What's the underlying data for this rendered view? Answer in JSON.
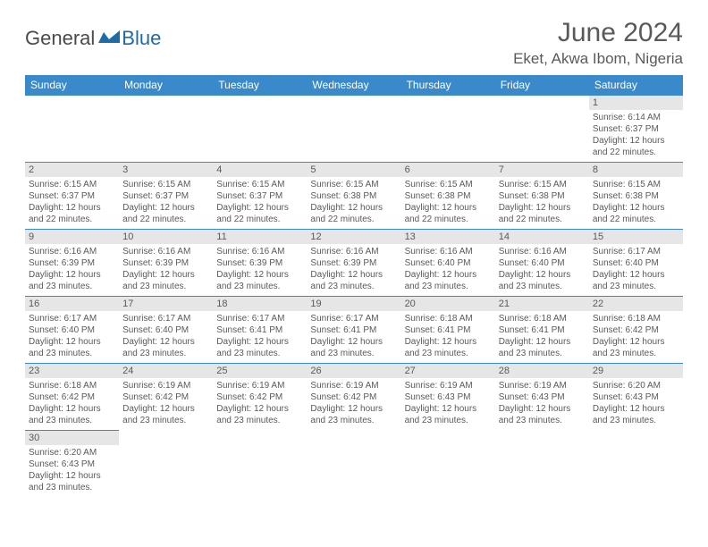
{
  "colors": {
    "header_bg": "#3a8acb",
    "header_text": "#ffffff",
    "daynum_bg": "#e6e6e6",
    "border": "#3a8acb",
    "body_text": "#5a5a5a",
    "logo_blue": "#1e6ba8"
  },
  "logo": {
    "text1": "General",
    "text2": "Blue"
  },
  "title": "June 2024",
  "location": "Eket, Akwa Ibom, Nigeria",
  "weekdays": [
    "Sunday",
    "Monday",
    "Tuesday",
    "Wednesday",
    "Thursday",
    "Friday",
    "Saturday"
  ],
  "weeks": [
    [
      null,
      null,
      null,
      null,
      null,
      null,
      {
        "n": "1",
        "sr": "Sunrise: 6:14 AM",
        "ss": "Sunset: 6:37 PM",
        "d1": "Daylight: 12 hours",
        "d2": "and 22 minutes."
      }
    ],
    [
      {
        "n": "2",
        "sr": "Sunrise: 6:15 AM",
        "ss": "Sunset: 6:37 PM",
        "d1": "Daylight: 12 hours",
        "d2": "and 22 minutes."
      },
      {
        "n": "3",
        "sr": "Sunrise: 6:15 AM",
        "ss": "Sunset: 6:37 PM",
        "d1": "Daylight: 12 hours",
        "d2": "and 22 minutes."
      },
      {
        "n": "4",
        "sr": "Sunrise: 6:15 AM",
        "ss": "Sunset: 6:37 PM",
        "d1": "Daylight: 12 hours",
        "d2": "and 22 minutes."
      },
      {
        "n": "5",
        "sr": "Sunrise: 6:15 AM",
        "ss": "Sunset: 6:38 PM",
        "d1": "Daylight: 12 hours",
        "d2": "and 22 minutes."
      },
      {
        "n": "6",
        "sr": "Sunrise: 6:15 AM",
        "ss": "Sunset: 6:38 PM",
        "d1": "Daylight: 12 hours",
        "d2": "and 22 minutes."
      },
      {
        "n": "7",
        "sr": "Sunrise: 6:15 AM",
        "ss": "Sunset: 6:38 PM",
        "d1": "Daylight: 12 hours",
        "d2": "and 22 minutes."
      },
      {
        "n": "8",
        "sr": "Sunrise: 6:15 AM",
        "ss": "Sunset: 6:38 PM",
        "d1": "Daylight: 12 hours",
        "d2": "and 22 minutes."
      }
    ],
    [
      {
        "n": "9",
        "sr": "Sunrise: 6:16 AM",
        "ss": "Sunset: 6:39 PM",
        "d1": "Daylight: 12 hours",
        "d2": "and 23 minutes."
      },
      {
        "n": "10",
        "sr": "Sunrise: 6:16 AM",
        "ss": "Sunset: 6:39 PM",
        "d1": "Daylight: 12 hours",
        "d2": "and 23 minutes."
      },
      {
        "n": "11",
        "sr": "Sunrise: 6:16 AM",
        "ss": "Sunset: 6:39 PM",
        "d1": "Daylight: 12 hours",
        "d2": "and 23 minutes."
      },
      {
        "n": "12",
        "sr": "Sunrise: 6:16 AM",
        "ss": "Sunset: 6:39 PM",
        "d1": "Daylight: 12 hours",
        "d2": "and 23 minutes."
      },
      {
        "n": "13",
        "sr": "Sunrise: 6:16 AM",
        "ss": "Sunset: 6:40 PM",
        "d1": "Daylight: 12 hours",
        "d2": "and 23 minutes."
      },
      {
        "n": "14",
        "sr": "Sunrise: 6:16 AM",
        "ss": "Sunset: 6:40 PM",
        "d1": "Daylight: 12 hours",
        "d2": "and 23 minutes."
      },
      {
        "n": "15",
        "sr": "Sunrise: 6:17 AM",
        "ss": "Sunset: 6:40 PM",
        "d1": "Daylight: 12 hours",
        "d2": "and 23 minutes."
      }
    ],
    [
      {
        "n": "16",
        "sr": "Sunrise: 6:17 AM",
        "ss": "Sunset: 6:40 PM",
        "d1": "Daylight: 12 hours",
        "d2": "and 23 minutes."
      },
      {
        "n": "17",
        "sr": "Sunrise: 6:17 AM",
        "ss": "Sunset: 6:40 PM",
        "d1": "Daylight: 12 hours",
        "d2": "and 23 minutes."
      },
      {
        "n": "18",
        "sr": "Sunrise: 6:17 AM",
        "ss": "Sunset: 6:41 PM",
        "d1": "Daylight: 12 hours",
        "d2": "and 23 minutes."
      },
      {
        "n": "19",
        "sr": "Sunrise: 6:17 AM",
        "ss": "Sunset: 6:41 PM",
        "d1": "Daylight: 12 hours",
        "d2": "and 23 minutes."
      },
      {
        "n": "20",
        "sr": "Sunrise: 6:18 AM",
        "ss": "Sunset: 6:41 PM",
        "d1": "Daylight: 12 hours",
        "d2": "and 23 minutes."
      },
      {
        "n": "21",
        "sr": "Sunrise: 6:18 AM",
        "ss": "Sunset: 6:41 PM",
        "d1": "Daylight: 12 hours",
        "d2": "and 23 minutes."
      },
      {
        "n": "22",
        "sr": "Sunrise: 6:18 AM",
        "ss": "Sunset: 6:42 PM",
        "d1": "Daylight: 12 hours",
        "d2": "and 23 minutes."
      }
    ],
    [
      {
        "n": "23",
        "sr": "Sunrise: 6:18 AM",
        "ss": "Sunset: 6:42 PM",
        "d1": "Daylight: 12 hours",
        "d2": "and 23 minutes."
      },
      {
        "n": "24",
        "sr": "Sunrise: 6:19 AM",
        "ss": "Sunset: 6:42 PM",
        "d1": "Daylight: 12 hours",
        "d2": "and 23 minutes."
      },
      {
        "n": "25",
        "sr": "Sunrise: 6:19 AM",
        "ss": "Sunset: 6:42 PM",
        "d1": "Daylight: 12 hours",
        "d2": "and 23 minutes."
      },
      {
        "n": "26",
        "sr": "Sunrise: 6:19 AM",
        "ss": "Sunset: 6:42 PM",
        "d1": "Daylight: 12 hours",
        "d2": "and 23 minutes."
      },
      {
        "n": "27",
        "sr": "Sunrise: 6:19 AM",
        "ss": "Sunset: 6:43 PM",
        "d1": "Daylight: 12 hours",
        "d2": "and 23 minutes."
      },
      {
        "n": "28",
        "sr": "Sunrise: 6:19 AM",
        "ss": "Sunset: 6:43 PM",
        "d1": "Daylight: 12 hours",
        "d2": "and 23 minutes."
      },
      {
        "n": "29",
        "sr": "Sunrise: 6:20 AM",
        "ss": "Sunset: 6:43 PM",
        "d1": "Daylight: 12 hours",
        "d2": "and 23 minutes."
      }
    ],
    [
      {
        "n": "30",
        "sr": "Sunrise: 6:20 AM",
        "ss": "Sunset: 6:43 PM",
        "d1": "Daylight: 12 hours",
        "d2": "and 23 minutes."
      },
      null,
      null,
      null,
      null,
      null,
      null
    ]
  ]
}
